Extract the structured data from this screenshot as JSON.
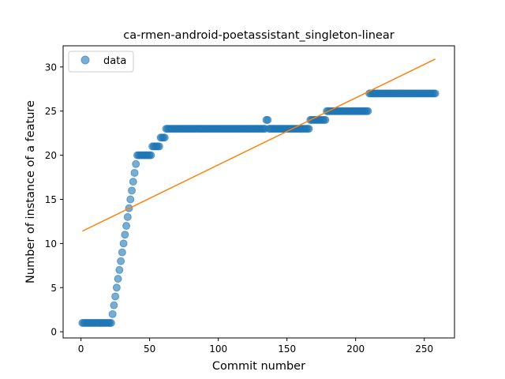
{
  "chart_data": {
    "type": "scatter",
    "title": "ca-rmen-android-poetassistant_singleton-linear",
    "xlabel": "Commit number",
    "ylabel": "Number of instance of a feature",
    "xlim": [
      -13,
      272
    ],
    "ylim": [
      -0.7,
      32.4
    ],
    "xticks": [
      0,
      50,
      100,
      150,
      200,
      250
    ],
    "yticks": [
      0,
      5,
      10,
      15,
      20,
      25,
      30
    ],
    "legend": {
      "label": "data",
      "placement": "top-left"
    },
    "colors": {
      "points": "#1f77b4",
      "fit": "#ff7f0e"
    },
    "grid": false,
    "segments": [
      {
        "x": [
          1,
          22
        ],
        "y": 1
      },
      {
        "x": [
          23,
          23
        ],
        "y": 2
      },
      {
        "x": [
          24,
          24
        ],
        "y": 3
      },
      {
        "x": [
          25,
          25
        ],
        "y": 4
      },
      {
        "x": [
          26,
          26
        ],
        "y": 5
      },
      {
        "x": [
          27,
          27
        ],
        "y": 6
      },
      {
        "x": [
          28,
          28
        ],
        "y": 7
      },
      {
        "x": [
          29,
          29
        ],
        "y": 8
      },
      {
        "x": [
          30,
          30
        ],
        "y": 9
      },
      {
        "x": [
          31,
          31
        ],
        "y": 10
      },
      {
        "x": [
          32,
          32
        ],
        "y": 11
      },
      {
        "x": [
          33,
          33
        ],
        "y": 12
      },
      {
        "x": [
          34,
          34
        ],
        "y": 13
      },
      {
        "x": [
          35,
          35
        ],
        "y": 14
      },
      {
        "x": [
          36,
          36
        ],
        "y": 15
      },
      {
        "x": [
          37,
          37
        ],
        "y": 16
      },
      {
        "x": [
          38,
          38
        ],
        "y": 17
      },
      {
        "x": [
          39,
          39
        ],
        "y": 18
      },
      {
        "x": [
          40,
          40
        ],
        "y": 19
      },
      {
        "x": [
          41,
          51
        ],
        "y": 20
      },
      {
        "x": [
          52,
          57
        ],
        "y": 21
      },
      {
        "x": [
          58,
          61
        ],
        "y": 22
      },
      {
        "x": [
          62,
          134
        ],
        "y": 23
      },
      {
        "x": [
          135,
          136
        ],
        "y": 24
      },
      {
        "x": [
          137,
          166
        ],
        "y": 23
      },
      {
        "x": [
          167,
          178
        ],
        "y": 24
      },
      {
        "x": [
          179,
          209
        ],
        "y": 25
      },
      {
        "x": [
          210,
          258
        ],
        "y": 27
      }
    ],
    "fit_line": {
      "x": [
        1,
        258
      ],
      "y": [
        11.4,
        30.9
      ]
    }
  }
}
